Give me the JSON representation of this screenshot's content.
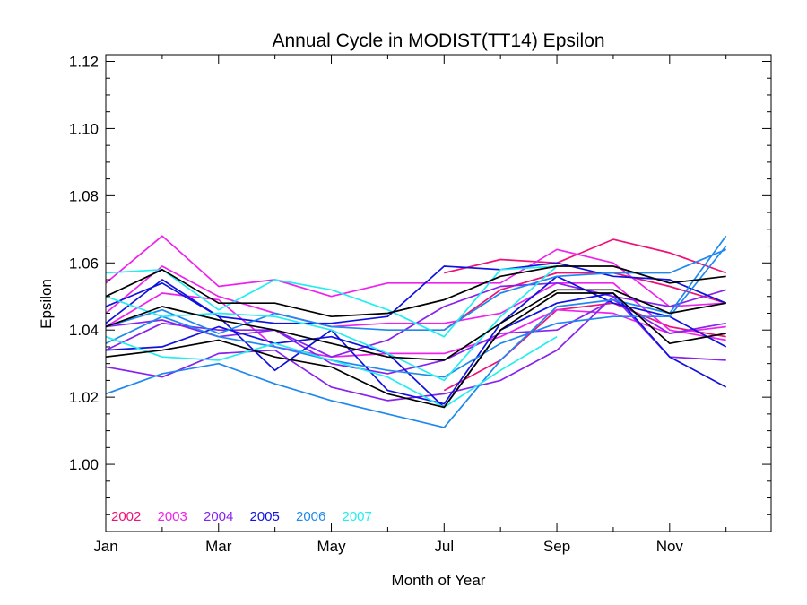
{
  "chart_data": {
    "type": "line",
    "title": "Annual Cycle in MODIST(TT14) Epsilon",
    "xlabel": "Month of Year",
    "ylabel": "Epsilon",
    "xlim": [
      1,
      12.8
    ],
    "ylim": [
      0.98,
      1.122
    ],
    "x_ticks": [
      {
        "value": 1,
        "label": "Jan"
      },
      {
        "value": 3,
        "label": "Mar"
      },
      {
        "value": 5,
        "label": "May"
      },
      {
        "value": 7,
        "label": "Jul"
      },
      {
        "value": 9,
        "label": "Sep"
      },
      {
        "value": 11,
        "label": "Nov"
      }
    ],
    "y_ticks": [
      {
        "value": 1.0,
        "label": "1.00"
      },
      {
        "value": 1.02,
        "label": "1.02"
      },
      {
        "value": 1.04,
        "label": "1.04"
      },
      {
        "value": 1.06,
        "label": "1.06"
      },
      {
        "value": 1.08,
        "label": "1.08"
      },
      {
        "value": 1.1,
        "label": "1.10"
      },
      {
        "value": 1.12,
        "label": "1.12"
      }
    ],
    "legend_position": "bottom-left",
    "legend": [
      {
        "label": "2002",
        "color": "#ee1177"
      },
      {
        "label": "2003",
        "color": "#ee22ee"
      },
      {
        "label": "2004",
        "color": "#8822ee"
      },
      {
        "label": "2005",
        "color": "#1111dd"
      },
      {
        "label": "2006",
        "color": "#1f88ee"
      },
      {
        "label": "2007",
        "color": "#22eeee"
      }
    ],
    "x": [
      1.0,
      2.0,
      3.0,
      4.0,
      5.0,
      6.0,
      7.0,
      8.0,
      9.0,
      10.0,
      11.0,
      12.0
    ],
    "series": [
      {
        "color": "#ee1177",
        "values": [
          null,
          null,
          null,
          null,
          null,
          null,
          1.057,
          1.061,
          1.06,
          1.067,
          1.063,
          1.057
        ]
      },
      {
        "color": "#ee1177",
        "values": [
          null,
          null,
          null,
          null,
          null,
          null,
          1.04,
          1.052,
          1.057,
          1.057,
          1.053,
          1.048
        ]
      },
      {
        "color": "#ee1177",
        "values": [
          null,
          null,
          null,
          null,
          null,
          null,
          1.022,
          1.031,
          1.046,
          1.048,
          1.041,
          1.038
        ]
      },
      {
        "color": "#ee22ee",
        "values": [
          1.054,
          1.068,
          1.053,
          1.055,
          1.05,
          1.054,
          1.054,
          1.054,
          1.064,
          1.06,
          1.047,
          1.048
        ]
      },
      {
        "color": "#ee22ee",
        "values": [
          1.045,
          1.059,
          1.05,
          1.045,
          1.041,
          1.042,
          1.042,
          1.045,
          1.054,
          1.054,
          1.04,
          1.037
        ]
      },
      {
        "color": "#ee22ee",
        "values": [
          1.041,
          1.051,
          1.049,
          1.035,
          1.032,
          1.033,
          1.033,
          1.038,
          1.046,
          1.045,
          1.039,
          1.041
        ]
      },
      {
        "color": "#8822ee",
        "values": [
          1.034,
          1.042,
          1.04,
          1.04,
          1.032,
          1.037,
          1.047,
          1.053,
          1.054,
          1.05,
          1.047,
          1.052
        ]
      },
      {
        "color": "#8822ee",
        "values": [
          1.041,
          1.043,
          1.038,
          1.04,
          1.03,
          1.027,
          1.031,
          1.039,
          1.04,
          1.049,
          1.039,
          1.042
        ]
      },
      {
        "color": "#8822ee",
        "values": [
          1.029,
          1.026,
          1.033,
          1.034,
          1.023,
          1.019,
          1.021,
          1.025,
          1.034,
          1.05,
          1.032,
          1.031
        ]
      },
      {
        "color": "#1111dd",
        "values": [
          1.042,
          1.055,
          1.044,
          1.042,
          1.042,
          1.044,
          1.059,
          1.058,
          1.06,
          1.056,
          1.055,
          1.048
        ]
      },
      {
        "color": "#1111dd",
        "values": [
          1.047,
          1.054,
          1.044,
          1.028,
          1.04,
          1.022,
          1.018,
          1.042,
          1.056,
          1.048,
          1.044,
          1.035
        ]
      },
      {
        "color": "#1111dd",
        "values": [
          1.034,
          1.035,
          1.041,
          1.036,
          1.038,
          1.033,
          1.017,
          1.04,
          1.048,
          1.051,
          1.032,
          1.023
        ]
      },
      {
        "color": "#1f88ee",
        "values": [
          1.021,
          1.027,
          1.03,
          1.024,
          1.019,
          1.015,
          1.011,
          1.031,
          1.047,
          1.049,
          1.045,
          1.068
        ]
      },
      {
        "color": "#1f88ee",
        "values": [
          1.036,
          1.044,
          1.038,
          1.035,
          1.031,
          1.028,
          1.026,
          1.036,
          1.042,
          1.044,
          1.044,
          1.065
        ]
      },
      {
        "color": "#1f88ee",
        "values": [
          1.041,
          1.046,
          1.039,
          1.045,
          1.041,
          1.04,
          1.04,
          1.051,
          1.056,
          1.057,
          1.057,
          1.064
        ]
      },
      {
        "color": "#22eeee",
        "values": [
          1.057,
          1.058,
          1.046,
          1.055,
          1.052,
          1.046,
          1.038,
          1.058,
          1.059,
          null,
          null,
          null
        ]
      },
      {
        "color": "#22eeee",
        "values": [
          1.05,
          1.044,
          1.045,
          1.044,
          1.04,
          1.033,
          1.025,
          1.044,
          1.059,
          null,
          null,
          null
        ]
      },
      {
        "color": "#22eeee",
        "values": [
          1.038,
          1.032,
          1.031,
          1.036,
          1.031,
          1.026,
          1.017,
          1.028,
          1.038,
          null,
          null,
          null
        ]
      },
      {
        "color": "#000000",
        "values": [
          1.05,
          1.058,
          1.048,
          1.048,
          1.044,
          1.045,
          1.049,
          1.056,
          1.059,
          1.059,
          1.054,
          1.056
        ]
      },
      {
        "color": "#000000",
        "values": [
          1.041,
          1.047,
          1.043,
          1.04,
          1.036,
          1.032,
          1.031,
          1.042,
          1.052,
          1.052,
          1.045,
          1.048
        ]
      },
      {
        "color": "#000000",
        "values": [
          1.032,
          1.034,
          1.037,
          1.032,
          1.029,
          1.021,
          1.017,
          1.04,
          1.051,
          1.051,
          1.036,
          1.039
        ]
      }
    ]
  }
}
